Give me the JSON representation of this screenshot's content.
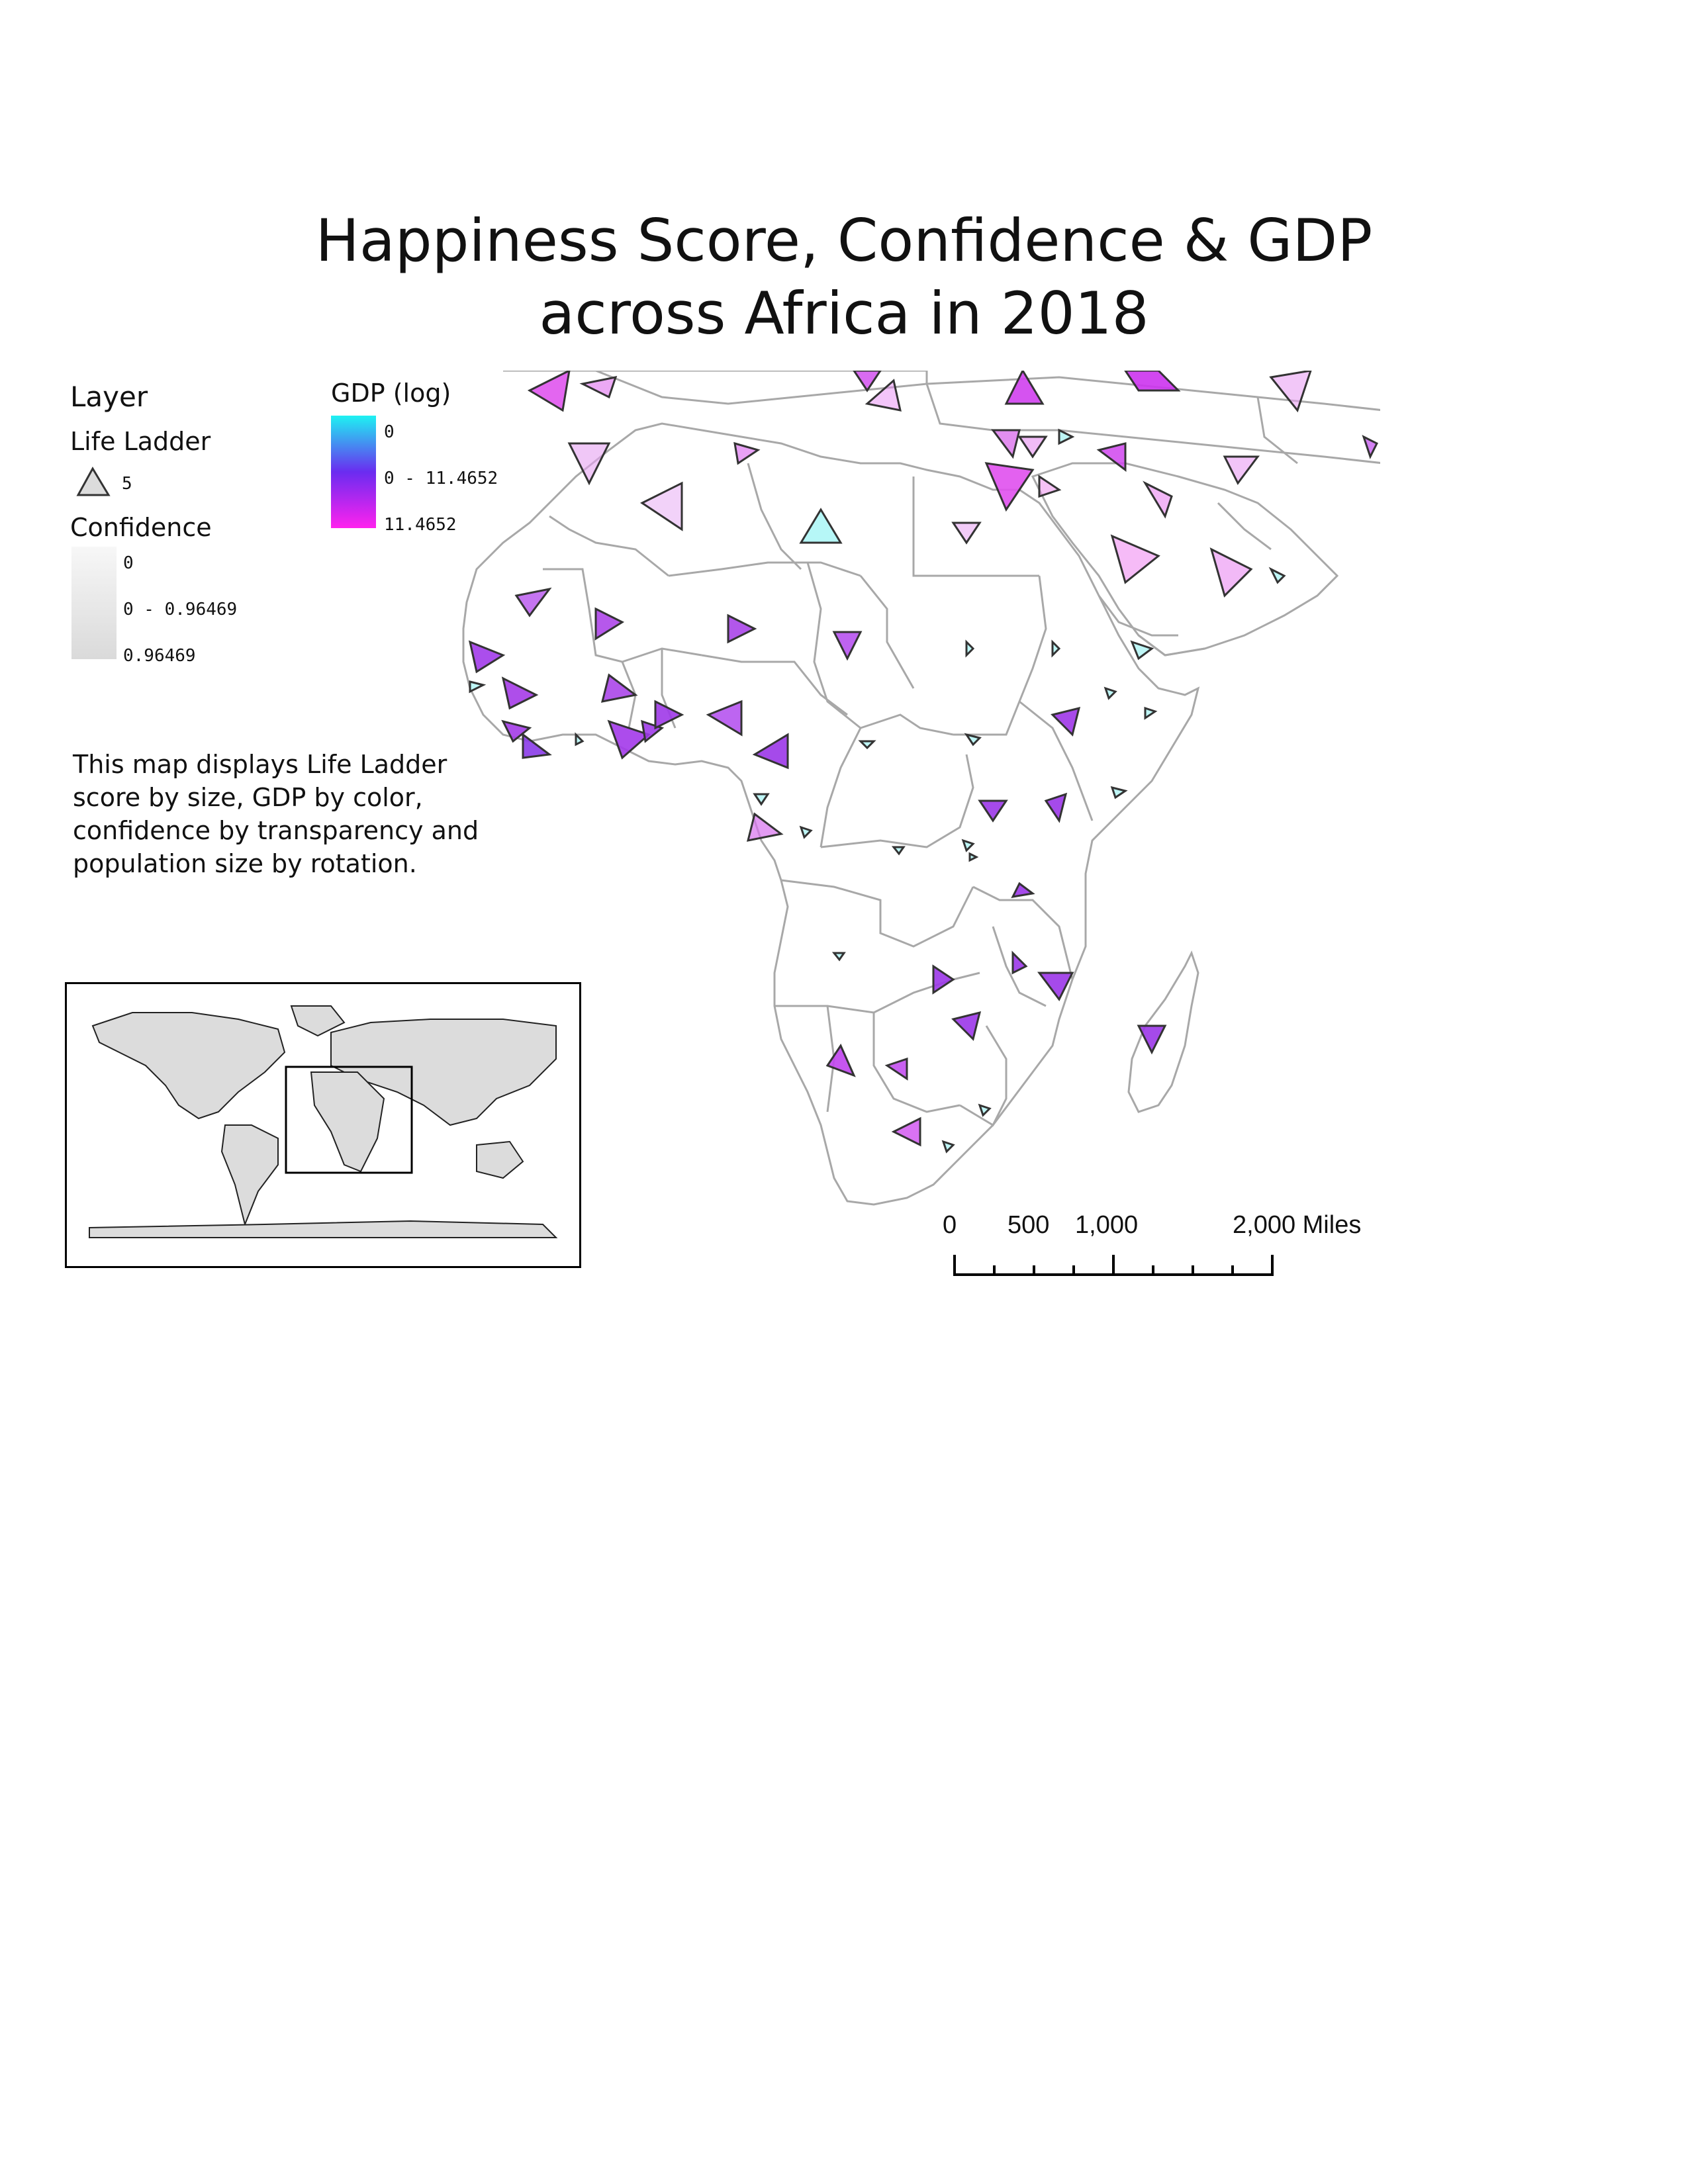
{
  "title": {
    "line1": "Happiness Score, Confidence & GDP",
    "line2": "across Africa in 2018"
  },
  "legend": {
    "layer_heading": "Layer",
    "life_ladder": {
      "label": "Life Ladder",
      "symbol_value": "5"
    },
    "confidence": {
      "label": "Confidence",
      "values": [
        "0",
        "0 - 0.96469",
        "0.96469"
      ]
    },
    "gdp": {
      "label": "GDP (log)",
      "values": [
        "0",
        "0 - 11.4652",
        "11.4652"
      ],
      "colors": [
        "#1ef2f2",
        "#6a2cf0",
        "#ff22ee"
      ]
    }
  },
  "description": "This map displays Life Ladder score by size, GDP by color, confidence by transparency and population size by rotation.",
  "scale_bar": {
    "labels": [
      "0",
      "500",
      "1,000",
      "2,000 Miles"
    ]
  },
  "colors": {
    "country_fill": "#ffffff",
    "country_border": "#a8a8a8",
    "symbol_stroke": "#333333",
    "inset_land": "#dcdcdc"
  }
}
